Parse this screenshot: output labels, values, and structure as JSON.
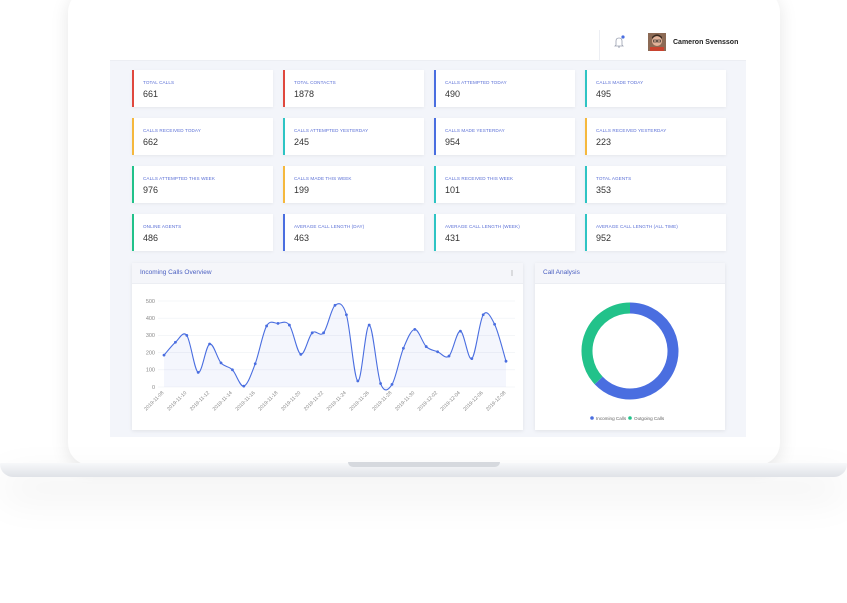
{
  "header": {
    "user_name": "Cameron Svensson"
  },
  "stats": [
    {
      "label": "TOTAL CALLS",
      "value": 661,
      "color": "#e0483e"
    },
    {
      "label": "TOTAL CONTACTS",
      "value": 1878,
      "color": "#e0483e"
    },
    {
      "label": "CALLS ATTEMPTED TODAY",
      "value": 490,
      "color": "#4a6ee0"
    },
    {
      "label": "CALLS MADE TODAY",
      "value": 495,
      "color": "#2ec4c4"
    },
    {
      "label": "CALLS RECEIVED TODAY",
      "value": 662,
      "color": "#f5b83d"
    },
    {
      "label": "CALLS ATTEMPTED YESTERDAY",
      "value": 245,
      "color": "#2ec4c4"
    },
    {
      "label": "CALLS MADE YESTERDAY",
      "value": 954,
      "color": "#4a6ee0"
    },
    {
      "label": "CALLS RECEIVED YESTERDAY",
      "value": 223,
      "color": "#f5b83d"
    },
    {
      "label": "CALLS ATTEMPTED THIS WEEK",
      "value": 976,
      "color": "#22c28a"
    },
    {
      "label": "CALLS MADE THIS WEEK",
      "value": 199,
      "color": "#f5b83d"
    },
    {
      "label": "CALLS RECEIVED THIS WEEK",
      "value": 101,
      "color": "#2ec4c4"
    },
    {
      "label": "TOTAL AGENTS",
      "value": 353,
      "color": "#2ec4c4"
    },
    {
      "label": "ONLINE AGENTS",
      "value": 486,
      "color": "#22c28a"
    },
    {
      "label": "AVERAGE CALL LENGTH (DAY)",
      "value": 463,
      "color": "#4a6ee0"
    },
    {
      "label": "AVERAGE CALL LENGTH (WEEK)",
      "value": 431,
      "color": "#2ec4c4"
    },
    {
      "label": "AVERAGE CALL LENGTH (ALL TIME)",
      "value": 952,
      "color": "#2ec4c4"
    }
  ],
  "chart_data": [
    {
      "type": "line",
      "title": "Incoming Calls Overview",
      "color": "#4a6ee0",
      "grid": true,
      "categories": [
        "2019-11-08",
        null,
        "2019-11-10",
        null,
        "2019-11-12",
        null,
        "2019-11-14",
        null,
        "2019-11-16",
        null,
        "2019-11-18",
        null,
        "2019-11-20",
        null,
        "2019-11-22",
        null,
        "2019-11-24",
        null,
        "2019-11-26",
        null,
        "2019-11-28",
        null,
        "2019-11-30",
        null,
        "2019-12-02",
        null,
        "2019-12-04",
        null,
        "2019-12-06",
        null,
        "2019-12-08"
      ],
      "values": [
        185,
        260,
        300,
        85,
        250,
        140,
        100,
        5,
        135,
        355,
        370,
        360,
        190,
        315,
        315,
        475,
        420,
        35,
        360,
        20,
        15,
        225,
        335,
        235,
        205,
        180,
        325,
        165,
        420,
        365,
        150
      ],
      "ylim": [
        0,
        500
      ],
      "yticks": [
        0,
        100,
        200,
        300,
        400,
        500
      ]
    },
    {
      "type": "pie",
      "title": "Call Analysis",
      "categories": [
        "Incoming Calls",
        "Outgoing Calls"
      ],
      "values": [
        63,
        37
      ],
      "colors": [
        "#4a6ee0",
        "#22c28a"
      ]
    }
  ]
}
